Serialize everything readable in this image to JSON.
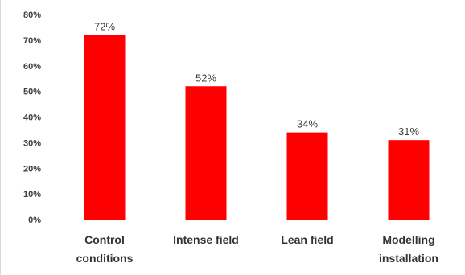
{
  "chart_data": {
    "type": "bar",
    "title": "",
    "xlabel": "",
    "ylabel": "",
    "categories": [
      [
        "Control",
        "conditions"
      ],
      [
        "Intense field"
      ],
      [
        "Lean field"
      ],
      [
        "Modelling",
        "installation"
      ]
    ],
    "values": [
      72,
      52,
      34,
      31
    ],
    "data_labels": [
      "72%",
      "52%",
      "34%",
      "31%"
    ],
    "ylim": [
      0,
      80
    ],
    "y_ticks": [
      0,
      10,
      20,
      30,
      40,
      50,
      60,
      70,
      80
    ],
    "y_tick_labels": [
      "0%",
      "10%",
      "20%",
      "30%",
      "40%",
      "50%",
      "60%",
      "70%",
      "80%"
    ],
    "grid": false,
    "legend": "none",
    "bar_color": "#ff0000",
    "axis_color": "#d9d9d9"
  }
}
